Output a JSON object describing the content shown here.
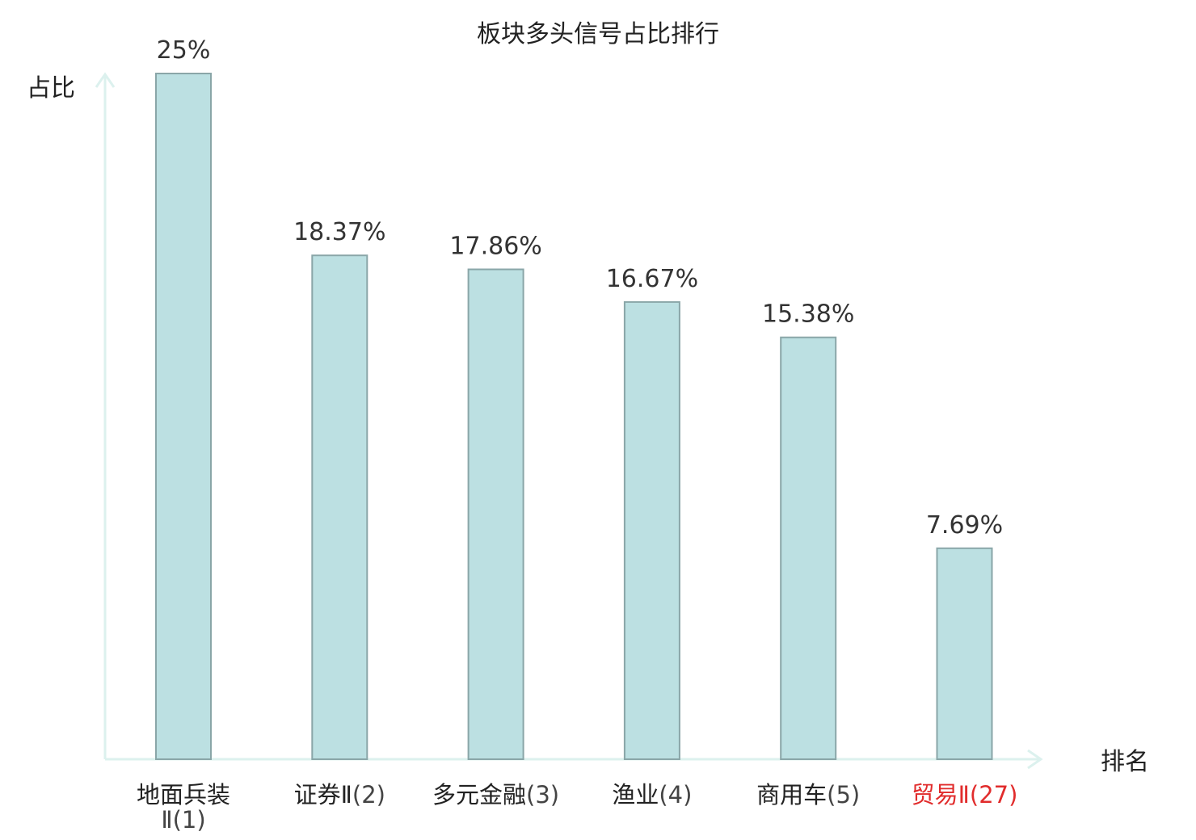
{
  "chart_data": {
    "type": "bar",
    "title": "板块多头信号占比排行",
    "xlabel": "排名",
    "ylabel": "占比",
    "categories": [
      {
        "name": "地面兵装Ⅱ",
        "rank": "(1)"
      },
      {
        "name": "证券Ⅱ",
        "rank": "(2)"
      },
      {
        "name": "多元金融",
        "rank": "(3)"
      },
      {
        "name": "渔业",
        "rank": "(4)"
      },
      {
        "name": "商用车",
        "rank": "(5)"
      },
      {
        "name": "贸易Ⅱ",
        "rank": "(27)"
      }
    ],
    "values": [
      25,
      18.37,
      17.86,
      16.67,
      15.38,
      7.69
    ],
    "value_labels": [
      "25%",
      "18.37%",
      "17.86%",
      "16.67%",
      "15.38%",
      "7.69%"
    ],
    "highlight_index": 5,
    "ylim": [
      0,
      25
    ],
    "grid": false,
    "colors": {
      "bar_fill": "#bce0e2",
      "bar_stroke": "#8aa6a8",
      "axis": "#dcf1ee",
      "highlight_text": "#e12c2c",
      "text": "#333333"
    }
  }
}
